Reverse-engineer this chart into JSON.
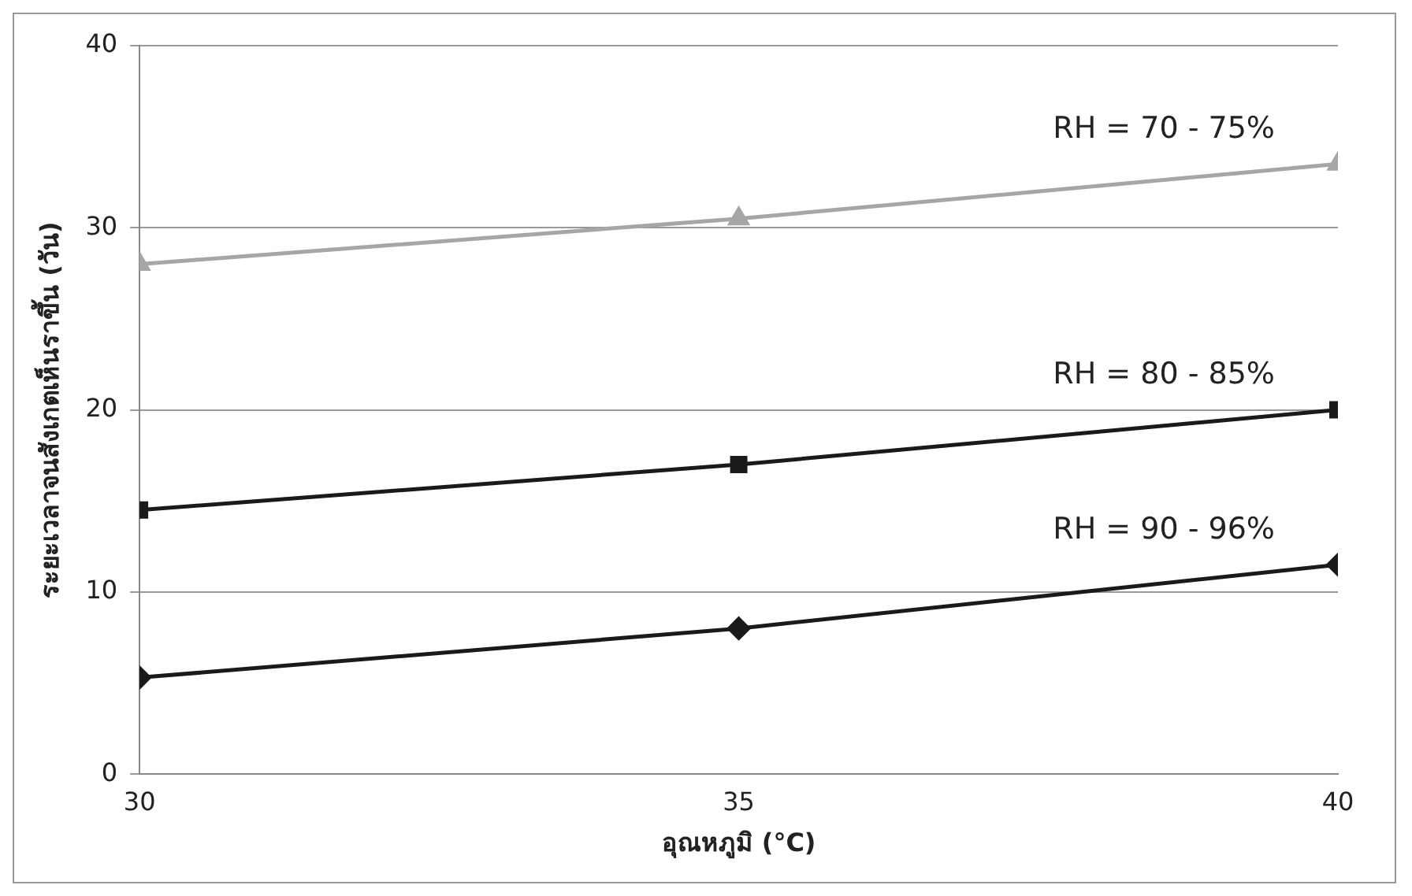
{
  "chart_data": {
    "type": "line",
    "xlabel": "อุณหภูมิ (°C)",
    "ylabel": "ระยะเวลาจนสังเกตเห็นราขึ้น (วัน)",
    "x": [
      30,
      35,
      40
    ],
    "xlim": [
      30,
      40
    ],
    "xticks": [
      30,
      35,
      40
    ],
    "ylim": [
      0,
      40
    ],
    "yticks": [
      0,
      10,
      20,
      30,
      40
    ],
    "grid": "y",
    "legend": false,
    "line_style": "solid",
    "series": [
      {
        "name": "RH = 70 - 75%",
        "color": "#a6a6a6",
        "marker": "triangle",
        "values": [
          28,
          30.5,
          33.5
        ]
      },
      {
        "name": "RH = 80 - 85%",
        "color": "#1a1a1a",
        "marker": "square",
        "values": [
          14.5,
          17,
          20
        ]
      },
      {
        "name": "RH = 90 - 96%",
        "color": "#1a1a1a",
        "marker": "diamond",
        "values": [
          5.3,
          8,
          11.5
        ]
      }
    ]
  }
}
